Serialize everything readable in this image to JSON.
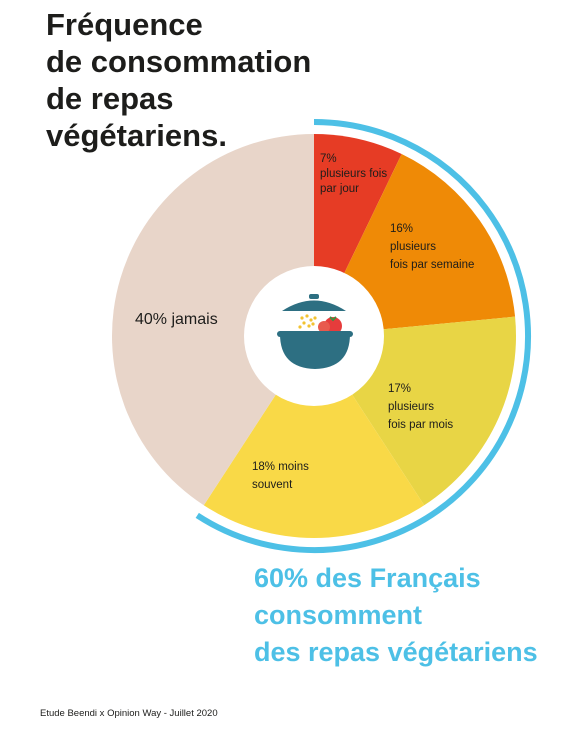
{
  "title": {
    "lines": [
      "Fréquence",
      "de consommation",
      "de repas",
      "végétariens."
    ]
  },
  "chart_data": {
    "type": "pie",
    "title": "Fréquence de consommation de repas végétariens.",
    "slices": [
      {
        "value": 7,
        "label_lines": [
          "7%",
          "plusieurs fois",
          "par jour"
        ],
        "color": "#e63c25"
      },
      {
        "value": 16,
        "label_lines": [
          "16%",
          "plusieurs",
          "fois par semaine"
        ],
        "color": "#ef8a06"
      },
      {
        "value": 17,
        "label_lines": [
          "17%",
          "plusieurs",
          "fois par mois"
        ],
        "color": "#e8d545"
      },
      {
        "value": 18,
        "label_lines": [
          "18% moins",
          "souvent"
        ],
        "color": "#f9d947"
      },
      {
        "value": 40,
        "label_lines": [
          "40% jamais"
        ],
        "color": "#e8d5c9"
      }
    ],
    "donut_hole": true,
    "highlight_arc_color": "#4dc0e6"
  },
  "highlight": {
    "lines": [
      "60% des Français",
      "consomment",
      "des repas végétariens"
    ]
  },
  "source": "Etude Beendi x Opinion Way - Juillet 2020",
  "icon": "vegetable-pot-icon"
}
